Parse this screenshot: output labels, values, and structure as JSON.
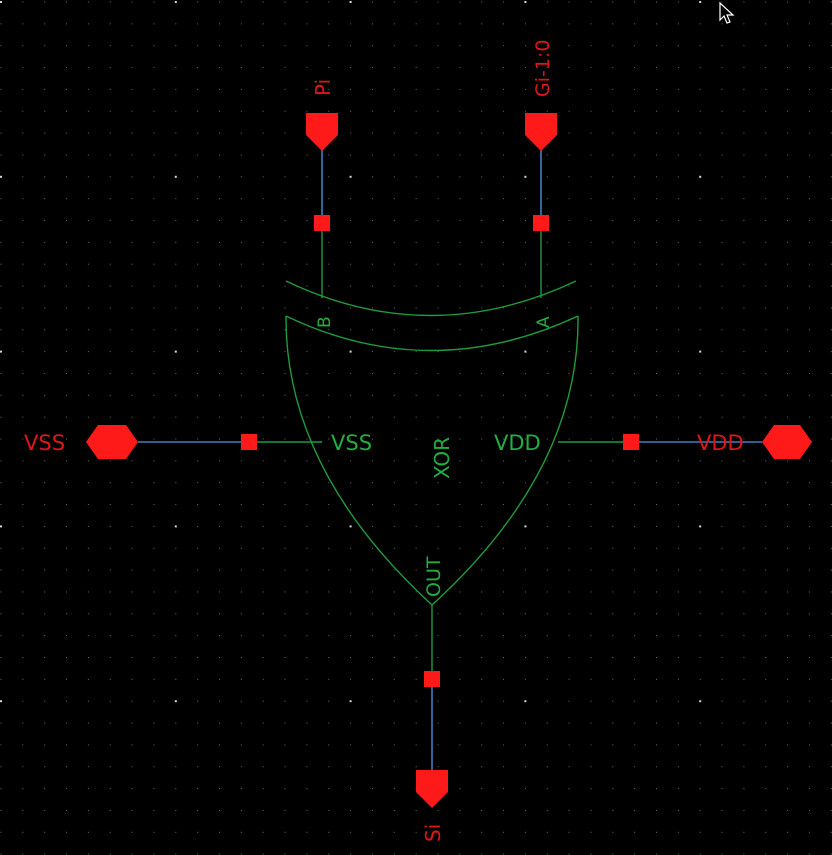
{
  "schematic": {
    "cell_name": "XOR",
    "colors": {
      "background": "#000000",
      "grid_dot": "#6a6a6a",
      "grid_major": "#d8d8d8",
      "symbol": "#1e9b3c",
      "symbol_text": "#20b040",
      "wire": "#3f7fc0",
      "pin": "#ff1a1a",
      "pin_text": "#e01616"
    },
    "symbol_pins": {
      "in_b": "B",
      "in_a": "A",
      "vss": "VSS",
      "vdd": "VDD",
      "out": "OUT"
    },
    "io_pins": {
      "pi": "Pi",
      "gi": "Gi-1:0",
      "vss": "VSS",
      "vdd": "VDD",
      "si": "Si"
    }
  }
}
